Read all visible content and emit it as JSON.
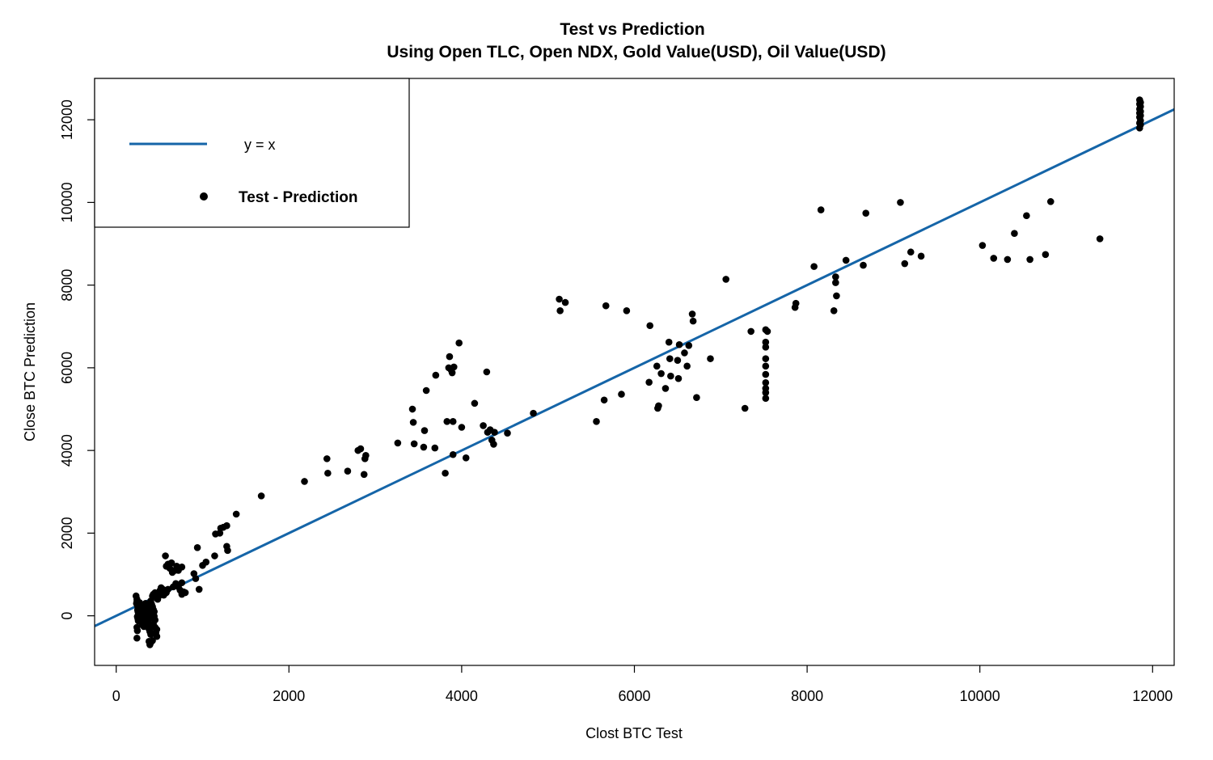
{
  "chart_data": {
    "type": "scatter",
    "title": "Test vs Prediction",
    "subtitle": "Using Open TLC, Open NDX, Gold Value(USD), Oil Value(USD)",
    "xlabel": "Clost BTC Test",
    "ylabel": "Close BTC Prediction",
    "xlim": [
      -250,
      12250
    ],
    "ylim": [
      -1200,
      13000
    ],
    "xticks": [
      0,
      2000,
      4000,
      6000,
      8000,
      10000,
      12000
    ],
    "yticks": [
      0,
      2000,
      4000,
      6000,
      8000,
      10000,
      12000
    ],
    "grid": false,
    "legend": {
      "position": "top-left",
      "entries": [
        {
          "label": "y = x",
          "kind": "line",
          "color": "#1565a8"
        },
        {
          "label": "Test - Prediction",
          "kind": "point",
          "color": "#000000"
        }
      ]
    },
    "reference_line": {
      "name": "y = x",
      "slope": 1,
      "intercept": 0,
      "color": "#1565a8"
    },
    "series": [
      {
        "name": "Test - Prediction",
        "color": "#000000",
        "points": [
          [
            230,
            480
          ],
          [
            240,
            400
          ],
          [
            240,
            350
          ],
          [
            235,
            300
          ],
          [
            245,
            260
          ],
          [
            250,
            220
          ],
          [
            255,
            180
          ],
          [
            248,
            140
          ],
          [
            252,
            100
          ],
          [
            258,
            60
          ],
          [
            262,
            20
          ],
          [
            245,
            -20
          ],
          [
            250,
            -60
          ],
          [
            255,
            -120
          ],
          [
            240,
            -280
          ],
          [
            245,
            -360
          ],
          [
            240,
            -540
          ],
          [
            270,
            320
          ],
          [
            280,
            260
          ],
          [
            290,
            200
          ],
          [
            300,
            150
          ],
          [
            310,
            100
          ],
          [
            290,
            50
          ],
          [
            300,
            0
          ],
          [
            320,
            -50
          ],
          [
            310,
            -100
          ],
          [
            330,
            -150
          ],
          [
            300,
            -200
          ],
          [
            320,
            -260
          ],
          [
            340,
            300
          ],
          [
            350,
            250
          ],
          [
            360,
            200
          ],
          [
            370,
            120
          ],
          [
            350,
            60
          ],
          [
            360,
            -20
          ],
          [
            380,
            -80
          ],
          [
            370,
            -180
          ],
          [
            390,
            -240
          ],
          [
            380,
            -320
          ],
          [
            390,
            -380
          ],
          [
            400,
            -450
          ],
          [
            380,
            -620
          ],
          [
            390,
            -700
          ],
          [
            400,
            -650
          ],
          [
            420,
            -600
          ],
          [
            410,
            280
          ],
          [
            420,
            220
          ],
          [
            430,
            150
          ],
          [
            440,
            100
          ],
          [
            420,
            40
          ],
          [
            440,
            -10
          ],
          [
            450,
            -100
          ],
          [
            430,
            -200
          ],
          [
            450,
            -280
          ],
          [
            470,
            -330
          ],
          [
            460,
            -400
          ],
          [
            470,
            -500
          ],
          [
            400,
            360
          ],
          [
            420,
            480
          ],
          [
            430,
            520
          ],
          [
            450,
            560
          ],
          [
            460,
            500
          ],
          [
            470,
            430
          ],
          [
            490,
            470
          ],
          [
            500,
            560
          ],
          [
            510,
            620
          ],
          [
            520,
            680
          ],
          [
            540,
            640
          ],
          [
            560,
            600
          ],
          [
            480,
            400
          ],
          [
            570,
            1450
          ],
          [
            580,
            1200
          ],
          [
            600,
            1250
          ],
          [
            620,
            1150
          ],
          [
            650,
            1050
          ],
          [
            680,
            1100
          ],
          [
            700,
            1200
          ],
          [
            720,
            1100
          ],
          [
            760,
            1180
          ],
          [
            640,
            1280
          ],
          [
            660,
            700
          ],
          [
            700,
            760
          ],
          [
            720,
            700
          ],
          [
            760,
            800
          ],
          [
            780,
            580
          ],
          [
            760,
            520
          ],
          [
            800,
            560
          ],
          [
            740,
            620
          ],
          [
            690,
            780
          ],
          [
            600,
            640
          ],
          [
            550,
            500
          ],
          [
            580,
            560
          ],
          [
            900,
            1020
          ],
          [
            920,
            900
          ],
          [
            940,
            1650
          ],
          [
            960,
            640
          ],
          [
            1000,
            1220
          ],
          [
            1040,
            1300
          ],
          [
            1140,
            1450
          ],
          [
            1150,
            1980
          ],
          [
            1200,
            2000
          ],
          [
            1210,
            2120
          ],
          [
            1240,
            2140
          ],
          [
            1280,
            1680
          ],
          [
            1290,
            1580
          ],
          [
            1280,
            2180
          ],
          [
            1390,
            2460
          ],
          [
            1680,
            2900
          ],
          [
            2180,
            3250
          ],
          [
            2440,
            3800
          ],
          [
            2450,
            3450
          ],
          [
            2680,
            3500
          ],
          [
            2800,
            4000
          ],
          [
            2830,
            4040
          ],
          [
            2870,
            3420
          ],
          [
            2880,
            3800
          ],
          [
            2890,
            3880
          ],
          [
            3260,
            4180
          ],
          [
            3430,
            5000
          ],
          [
            3440,
            4680
          ],
          [
            3450,
            4160
          ],
          [
            3560,
            4080
          ],
          [
            3570,
            4480
          ],
          [
            3590,
            5450
          ],
          [
            3690,
            4060
          ],
          [
            3700,
            5820
          ],
          [
            3810,
            3450
          ],
          [
            3830,
            4700
          ],
          [
            3850,
            6000
          ],
          [
            3860,
            6270
          ],
          [
            3880,
            5940
          ],
          [
            3890,
            5880
          ],
          [
            3900,
            3900
          ],
          [
            3910,
            6020
          ],
          [
            3900,
            4700
          ],
          [
            3970,
            6600
          ],
          [
            4000,
            4560
          ],
          [
            4050,
            3820
          ],
          [
            4150,
            5140
          ],
          [
            4250,
            4600
          ],
          [
            4290,
            5900
          ],
          [
            4300,
            4440
          ],
          [
            4330,
            4500
          ],
          [
            4350,
            4250
          ],
          [
            4370,
            4150
          ],
          [
            4380,
            4440
          ],
          [
            4530,
            4420
          ],
          [
            4830,
            4900
          ],
          [
            5130,
            7660
          ],
          [
            5140,
            7380
          ],
          [
            5200,
            7580
          ],
          [
            5560,
            4700
          ],
          [
            5650,
            5220
          ],
          [
            5670,
            7500
          ],
          [
            5850,
            5360
          ],
          [
            5910,
            7380
          ],
          [
            6170,
            5650
          ],
          [
            6180,
            7020
          ],
          [
            6260,
            6040
          ],
          [
            6270,
            5020
          ],
          [
            6280,
            5080
          ],
          [
            6310,
            5860
          ],
          [
            6360,
            5500
          ],
          [
            6400,
            6620
          ],
          [
            6410,
            6220
          ],
          [
            6420,
            5800
          ],
          [
            6500,
            6180
          ],
          [
            6510,
            5740
          ],
          [
            6520,
            6560
          ],
          [
            6580,
            6360
          ],
          [
            6610,
            6040
          ],
          [
            6630,
            6540
          ],
          [
            6670,
            7300
          ],
          [
            6680,
            7130
          ],
          [
            6720,
            5280
          ],
          [
            6880,
            6220
          ],
          [
            7060,
            8140
          ],
          [
            7280,
            5020
          ],
          [
            7350,
            6880
          ],
          [
            7520,
            6920
          ],
          [
            7520,
            6620
          ],
          [
            7520,
            6500
          ],
          [
            7520,
            6220
          ],
          [
            7520,
            6040
          ],
          [
            7520,
            5840
          ],
          [
            7520,
            5640
          ],
          [
            7520,
            5500
          ],
          [
            7520,
            5400
          ],
          [
            7520,
            5260
          ],
          [
            7540,
            6880
          ],
          [
            7860,
            7460
          ],
          [
            7870,
            7560
          ],
          [
            8080,
            8450
          ],
          [
            8160,
            9820
          ],
          [
            8310,
            7380
          ],
          [
            8330,
            8200
          ],
          [
            8330,
            8060
          ],
          [
            8340,
            7740
          ],
          [
            8450,
            8600
          ],
          [
            8650,
            8480
          ],
          [
            8680,
            9740
          ],
          [
            9080,
            10000
          ],
          [
            9130,
            8520
          ],
          [
            9200,
            8800
          ],
          [
            9320,
            8700
          ],
          [
            10030,
            8960
          ],
          [
            10160,
            8650
          ],
          [
            10320,
            8620
          ],
          [
            10400,
            9250
          ],
          [
            10540,
            9680
          ],
          [
            10580,
            8620
          ],
          [
            10760,
            8740
          ],
          [
            10820,
            10020
          ],
          [
            11390,
            9120
          ],
          [
            11850,
            12480
          ],
          [
            11850,
            12380
          ],
          [
            11850,
            12260
          ],
          [
            11850,
            12160
          ],
          [
            11850,
            12060
          ],
          [
            11850,
            11920
          ],
          [
            11850,
            11800
          ],
          [
            11860,
            12420
          ],
          [
            11860,
            12320
          ],
          [
            11860,
            12200
          ],
          [
            11860,
            12100
          ],
          [
            11860,
            11980
          ],
          [
            11860,
            11880
          ]
        ]
      }
    ]
  }
}
